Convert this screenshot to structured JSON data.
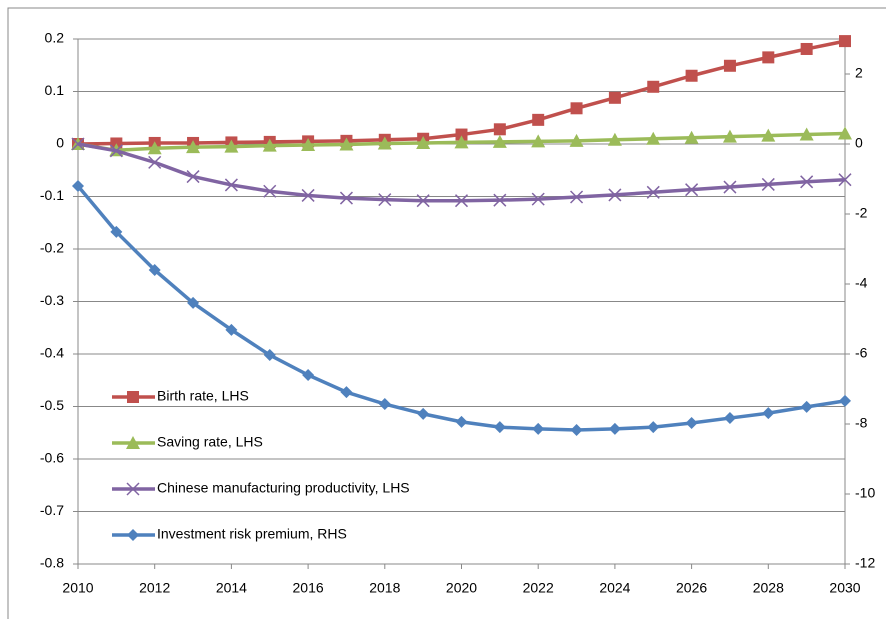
{
  "chart_data": {
    "type": "line",
    "x": [
      2010,
      2011,
      2012,
      2013,
      2014,
      2015,
      2016,
      2017,
      2018,
      2019,
      2020,
      2021,
      2022,
      2023,
      2024,
      2025,
      2026,
      2027,
      2028,
      2029,
      2030
    ],
    "xlim": [
      2010,
      2030
    ],
    "xticks": [
      2010,
      2012,
      2014,
      2016,
      2018,
      2020,
      2022,
      2024,
      2026,
      2028,
      2030
    ],
    "ylim": [
      -0.8,
      0.2
    ],
    "yticks": [
      0.2,
      0.1,
      0,
      -0.1,
      -0.2,
      -0.3,
      -0.4,
      -0.5,
      -0.6,
      -0.7,
      -0.8
    ],
    "y2lim": [
      -12,
      3
    ],
    "y2ticks": [
      2,
      0,
      -2,
      -4,
      -6,
      -8,
      -10,
      -12
    ],
    "grid": true,
    "legend": "lower left",
    "series": [
      {
        "name": "Birth rate, LHS",
        "color": "#c0504d",
        "marker": "square",
        "values": [
          0,
          0.001,
          0.002,
          0.002,
          0.003,
          0.004,
          0.005,
          0.006,
          0.008,
          0.01,
          0.018,
          0.028,
          0.046,
          0.068,
          0.088,
          0.109,
          0.13,
          0.149,
          0.165,
          0.181,
          0.196
        ]
      },
      {
        "name": "Saving rate, LHS",
        "color": "#9bbb59",
        "marker": "triangle",
        "values": [
          0,
          -0.012,
          -0.008,
          -0.006,
          -0.005,
          -0.003,
          -0.002,
          -0.001,
          0.001,
          0.002,
          0.003,
          0.004,
          0.005,
          0.006,
          0.008,
          0.01,
          0.012,
          0.014,
          0.016,
          0.018,
          0.02
        ]
      },
      {
        "name": "Chinese manufacturing productivity, LHS",
        "color": "#8064a2",
        "marker": "x",
        "values": [
          0,
          -0.013,
          -0.035,
          -0.062,
          -0.078,
          -0.09,
          -0.098,
          -0.103,
          -0.106,
          -0.108,
          -0.108,
          -0.107,
          -0.105,
          -0.101,
          -0.097,
          -0.092,
          -0.087,
          -0.082,
          -0.077,
          -0.072,
          -0.068
        ]
      },
      {
        "name": "Investment risk premium, RHS",
        "color": "#4f81bd",
        "marker": "diamond",
        "axis": "y2",
        "values": [
          -1.2,
          -2.51,
          -3.6,
          -4.54,
          -5.31,
          -6.03,
          -6.6,
          -7.09,
          -7.43,
          -7.71,
          -7.94,
          -8.09,
          -8.14,
          -8.17,
          -8.14,
          -8.09,
          -7.97,
          -7.83,
          -7.69,
          -7.51,
          -7.34
        ]
      }
    ]
  }
}
